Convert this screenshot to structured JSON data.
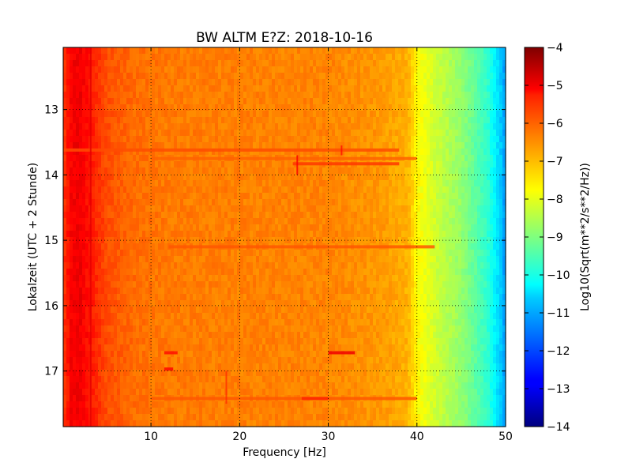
{
  "chart_data": {
    "type": "heatmap",
    "title": "BW ALTM E?Z: 2018-10-16",
    "xlabel": "Frequency [Hz]",
    "ylabel": "Lokalzeit (UTC + 2 Stunde)",
    "xlim": [
      0.1,
      50
    ],
    "ylim": [
      17.85,
      12.05
    ],
    "x_ticks": [
      10,
      20,
      30,
      40,
      50
    ],
    "x_tick_labels": [
      "10",
      "20",
      "30",
      "40",
      "50"
    ],
    "y_ticks": [
      13,
      14,
      15,
      16,
      17
    ],
    "y_tick_labels": [
      "13",
      "14",
      "15",
      "16",
      "17"
    ],
    "grid": true,
    "colorbar": {
      "label": "Log10(Sqrt(m**2/s**2/Hz))",
      "range": [
        -14,
        -4
      ],
      "ticks": [
        -4,
        -5,
        -6,
        -7,
        -8,
        -9,
        -10,
        -11,
        -12,
        -13,
        -14
      ],
      "tick_labels": [
        "−4",
        "−5",
        "−6",
        "−7",
        "−8",
        "−9",
        "−10",
        "−11",
        "−12",
        "−13",
        "−14"
      ],
      "colormap": "jet"
    },
    "profile": {
      "frequency_hz": [
        0.1,
        1,
        2,
        3,
        5,
        8,
        12,
        20,
        30,
        36,
        39,
        40,
        42,
        45,
        48,
        49.5,
        50
      ],
      "level": [
        -5.8,
        -5.2,
        -5.1,
        -5.4,
        -6.0,
        -6.3,
        -6.45,
        -6.5,
        -6.55,
        -6.75,
        -7.0,
        -7.7,
        -8.2,
        -8.8,
        -9.8,
        -10.8,
        -11.3
      ]
    },
    "features": [
      {
        "time": 13.62,
        "freq_start": 0.1,
        "freq_end": 38,
        "level": -6.0
      },
      {
        "time": 13.75,
        "freq_start": 10,
        "freq_end": 40,
        "level": -6.2
      },
      {
        "time": 13.83,
        "freq_start": 26,
        "freq_end": 38,
        "level": -5.8
      },
      {
        "time": 15.1,
        "freq_start": 12,
        "freq_end": 42,
        "level": -6.1
      },
      {
        "time": 16.72,
        "freq_start": 30,
        "freq_end": 33,
        "level": -5.1
      },
      {
        "time": 16.72,
        "freq_start": 11.5,
        "freq_end": 13,
        "level": -5.4
      },
      {
        "time": 16.97,
        "freq_start": 11.5,
        "freq_end": 12.5,
        "level": -5.3
      },
      {
        "time": 17.42,
        "freq_start": 10,
        "freq_end": 40,
        "level": -6.1
      },
      {
        "time": 17.42,
        "freq_start": 27,
        "freq_end": 30,
        "level": -5.6
      }
    ],
    "spikes": [
      {
        "freq": 26.5,
        "time_start": 13.7,
        "time_end": 14.0,
        "level": -5.2
      },
      {
        "freq": 31.5,
        "time_start": 13.55,
        "time_end": 13.7,
        "level": -5.4
      },
      {
        "freq": 18.5,
        "time_start": 17.0,
        "time_end": 17.5,
        "level": -5.7
      },
      {
        "freq": 3.2,
        "time_start": 12.05,
        "time_end": 17.85,
        "level": -5.0
      }
    ]
  }
}
